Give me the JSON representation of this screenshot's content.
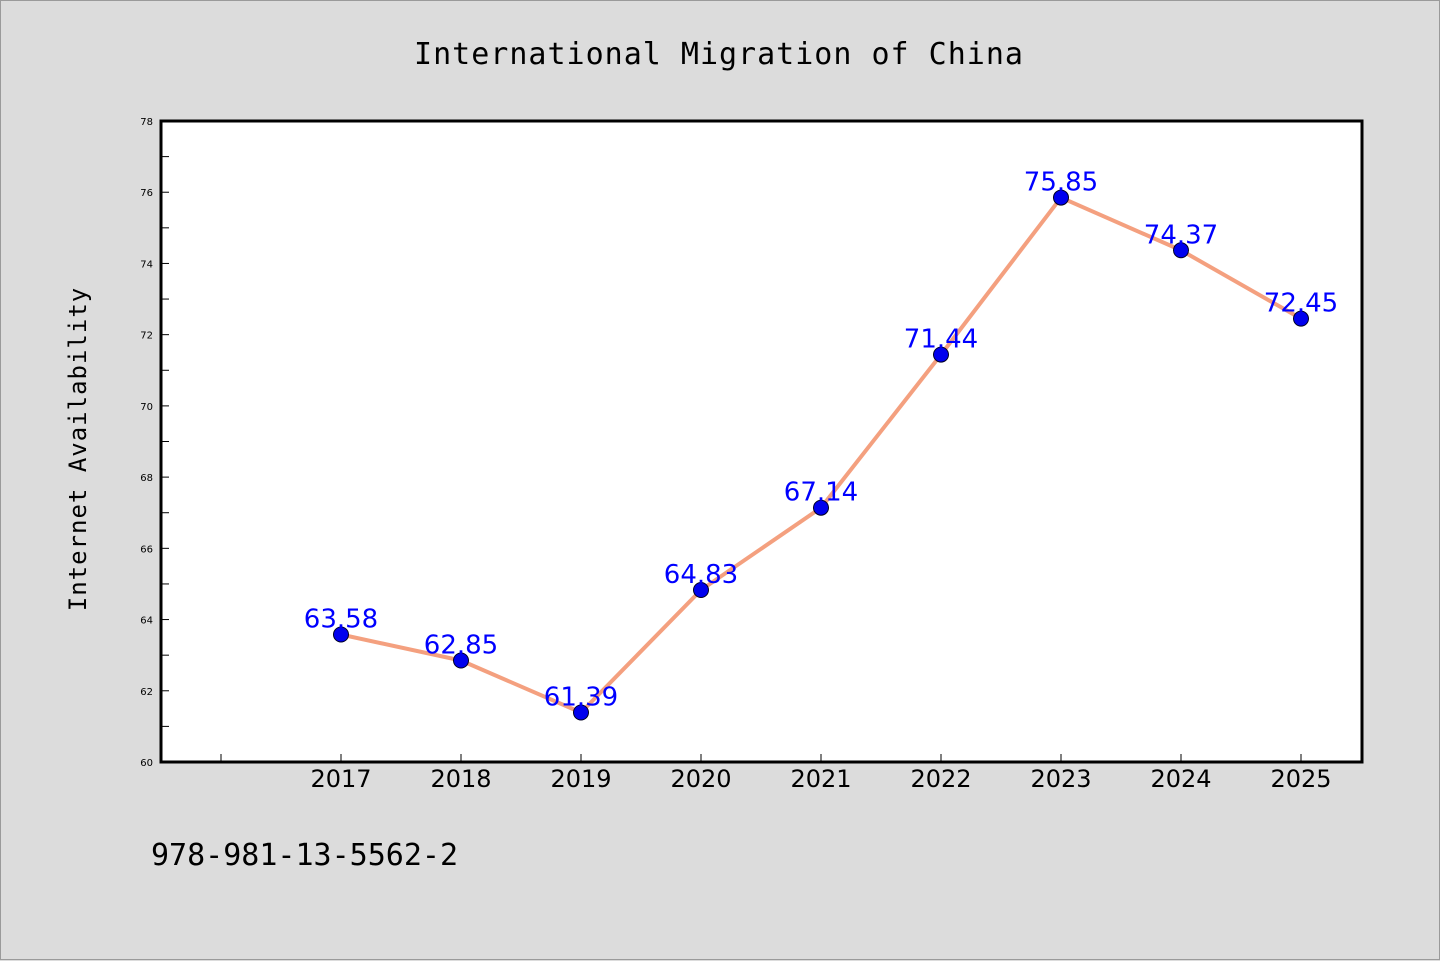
{
  "chart_data": {
    "type": "line",
    "title": "International Migration of China",
    "xlabel": "",
    "ylabel": "Internet Availability",
    "categories": [
      "2017",
      "2018",
      "2019",
      "2020",
      "2021",
      "2022",
      "2023",
      "2024",
      "2025"
    ],
    "series": [
      {
        "values": [
          63.58,
          62.85,
          61.39,
          64.83,
          67.14,
          71.44,
          75.85,
          74.37,
          72.45
        ],
        "data_labels": [
          "63.58",
          "62.85",
          "61.39",
          "64.83",
          "67.14",
          "71.44",
          "75.85",
          "74.37",
          "72.45"
        ]
      }
    ],
    "ylim": [
      60,
      78
    ],
    "y_ticks": [
      "60",
      "62",
      "64",
      "66",
      "68",
      "70",
      "72",
      "74",
      "76",
      "78"
    ],
    "grid": false,
    "legend": "none",
    "colors": {
      "line": "#f4a07f",
      "marker": "#0000ee",
      "data_label": "#0000ff",
      "plot_background": "#ffffff",
      "figure_background": "#dcdcdc"
    }
  },
  "footer": {
    "isbn": "978-981-13-5562-2"
  }
}
